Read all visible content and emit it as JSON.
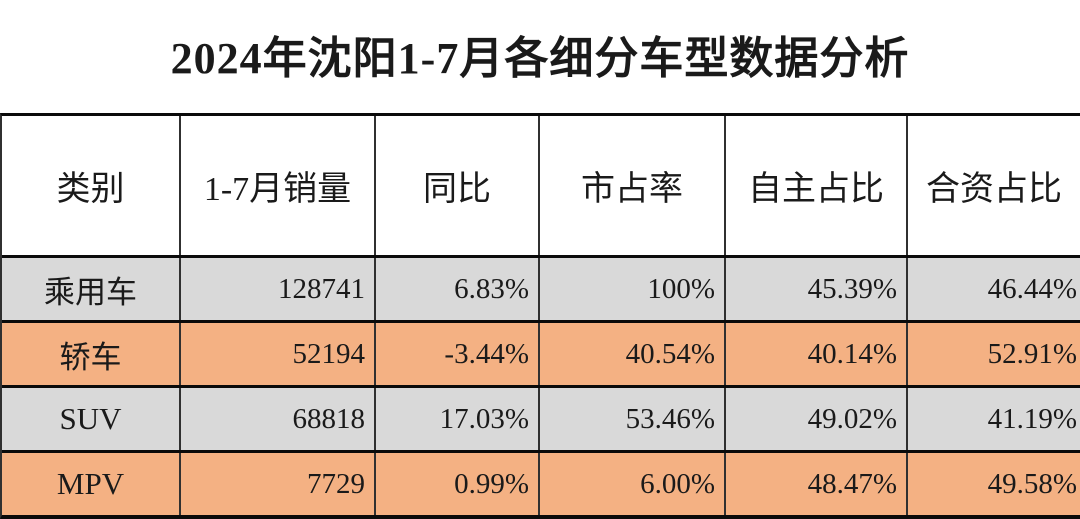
{
  "title": "2024年沈阳1-7月各细分车型数据分析",
  "colors": {
    "row_gray": "#D9D9D9",
    "row_orange": "#F4B183",
    "grid_line": "#303030",
    "row_separator": "#0A0A0A",
    "text": "#1A1A1A",
    "background": "#FFFFFF"
  },
  "table": {
    "row_backgrounds": [
      "gray",
      "orange",
      "gray",
      "orange"
    ]
  },
  "chart_data": {
    "type": "table",
    "title": "2024年沈阳1-7月各细分车型数据分析",
    "columns": [
      "类别",
      "1-7月销量",
      "同比",
      "市占率",
      "自主占比",
      "合资占比"
    ],
    "rows": [
      [
        "乘用车",
        128741,
        "6.83%",
        "100%",
        "45.39%",
        "46.44%"
      ],
      [
        "轿车",
        52194,
        "-3.44%",
        "40.54%",
        "40.14%",
        "52.91%"
      ],
      [
        "SUV",
        68818,
        "17.03%",
        "53.46%",
        "49.02%",
        "41.19%"
      ],
      [
        "MPV",
        7729,
        "0.99%",
        "6.00%",
        "48.47%",
        "49.58%"
      ]
    ]
  }
}
